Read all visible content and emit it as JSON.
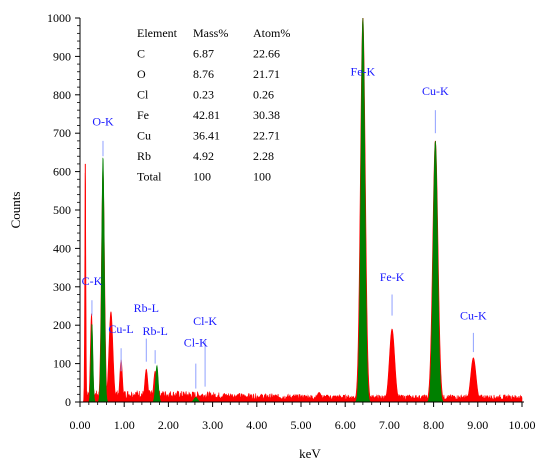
{
  "chart_data": {
    "type": "area",
    "xlabel": "keV",
    "ylabel": "Counts",
    "xlim": [
      0,
      10
    ],
    "ylim": [
      0,
      1000
    ],
    "grid": false,
    "x_ticks": [
      "0.00",
      "1.00",
      "2.00",
      "3.00",
      "4.00",
      "5.00",
      "6.00",
      "7.00",
      "8.00",
      "9.00",
      "10.00"
    ],
    "y_ticks": [
      "0",
      "100",
      "200",
      "300",
      "400",
      "500",
      "600",
      "700",
      "800",
      "900",
      "1000"
    ],
    "colors": {
      "background_spectrum": "#ff0000",
      "identified_peaks": "#008000",
      "labels": "#1a1aff",
      "markers": "#8fa0ff"
    },
    "series": [
      {
        "name": "",
        "color": "#ff0000",
        "peaks": [
          {
            "x": 0.12,
            "height": 620,
            "width": 0.012
          },
          {
            "x": 0.26,
            "height": 230,
            "width": 0.025
          },
          {
            "x": 0.52,
            "height": 600,
            "width": 0.035
          },
          {
            "x": 0.7,
            "height": 235,
            "width": 0.045
          },
          {
            "x": 0.93,
            "height": 110,
            "width": 0.03
          },
          {
            "x": 1.5,
            "height": 85,
            "width": 0.035
          },
          {
            "x": 1.7,
            "height": 80,
            "width": 0.035
          },
          {
            "x": 2.62,
            "height": 12,
            "width": 0.05
          },
          {
            "x": 5.41,
            "height": 25,
            "width": 0.05
          },
          {
            "x": 6.4,
            "height": 1000,
            "width": 0.055
          },
          {
            "x": 7.06,
            "height": 190,
            "width": 0.06
          },
          {
            "x": 8.04,
            "height": 680,
            "width": 0.06
          },
          {
            "x": 8.9,
            "height": 115,
            "width": 0.06
          }
        ],
        "background": {
          "low": 15,
          "high": 25
        }
      },
      {
        "name": "",
        "color": "#008000",
        "peaks": [
          {
            "x": 0.27,
            "height": 205,
            "width": 0.022
          },
          {
            "x": 0.52,
            "height": 640,
            "width": 0.03
          },
          {
            "x": 1.74,
            "height": 95,
            "width": 0.03
          },
          {
            "x": 2.62,
            "height": 12,
            "width": 0.04
          },
          {
            "x": 6.4,
            "height": 1000,
            "width": 0.045
          },
          {
            "x": 8.04,
            "height": 680,
            "width": 0.05
          }
        ]
      }
    ],
    "annotations": [
      {
        "text": "O-K",
        "x": 0.52,
        "y": 720,
        "line_top": 680,
        "line_bottom": 640
      },
      {
        "text": "C-K",
        "x": 0.27,
        "y": 305,
        "line_top": 265,
        "line_bottom": 225
      },
      {
        "text": "Cu-L",
        "x": 0.93,
        "y": 180,
        "line_top": 140,
        "line_bottom": 80
      },
      {
        "text": "Rb-L",
        "x": 1.5,
        "y": 235,
        "line_top": 165,
        "line_bottom": 105
      },
      {
        "text": "Rb-L",
        "x": 1.7,
        "y": 175,
        "line_top": 135,
        "line_bottom": 100
      },
      {
        "text": "Cl-K",
        "x": 2.83,
        "y": 200,
        "line_top": 160,
        "line_bottom": 40
      },
      {
        "text": "Cl-K",
        "x": 2.62,
        "y": 145,
        "line_top": 100,
        "line_bottom": 35
      },
      {
        "text": "Fe-K",
        "x": 6.4,
        "y": 850,
        "line_top": null,
        "line_bottom": null
      },
      {
        "text": "Fe-K",
        "x": 7.06,
        "y": 315,
        "line_top": 280,
        "line_bottom": 225
      },
      {
        "text": "Cu-K",
        "x": 8.04,
        "y": 800,
        "line_top": 760,
        "line_bottom": 700
      },
      {
        "text": "Cu-K",
        "x": 8.9,
        "y": 215,
        "line_top": 180,
        "line_bottom": 130
      }
    ]
  },
  "composition_table": {
    "headers": [
      "Element",
      "Mass%",
      "Atom%"
    ],
    "rows": [
      [
        "C",
        "6.87",
        "22.66"
      ],
      [
        "O",
        "8.76",
        "21.71"
      ],
      [
        "Cl",
        "0.23",
        "0.26"
      ],
      [
        "Fe",
        "42.81",
        "30.38"
      ],
      [
        "Cu",
        "36.41",
        "22.71"
      ],
      [
        "Rb",
        "4.92",
        "2.28"
      ],
      [
        "Total",
        "100",
        "100"
      ]
    ]
  }
}
